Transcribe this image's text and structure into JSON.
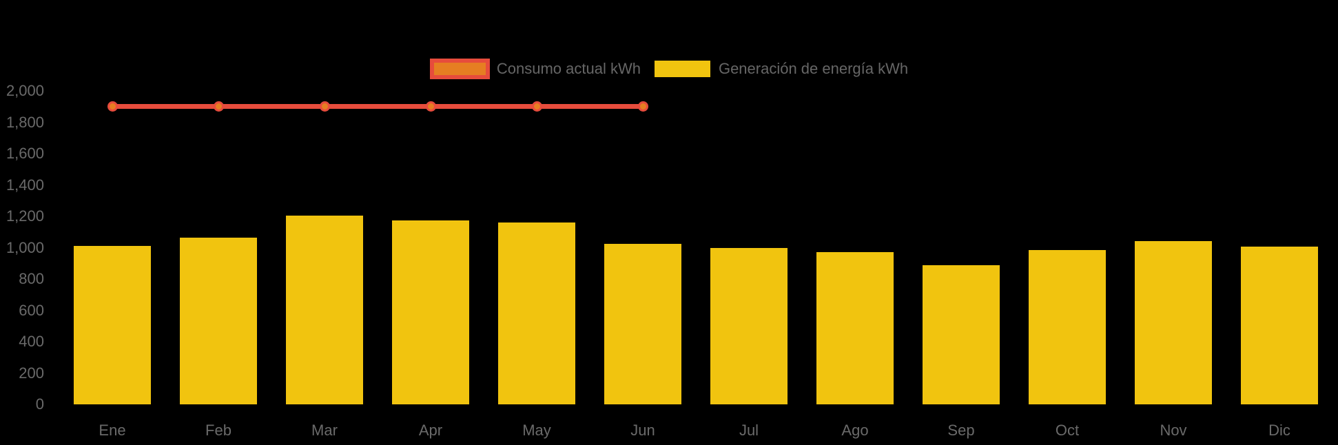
{
  "legend": {
    "items": [
      {
        "id": "consumo",
        "label": "Consumo actual kWh",
        "swatch_fill": "#e67e22",
        "swatch_border": "#e74c3c"
      },
      {
        "id": "generacion",
        "label": "Generación de energía kWh",
        "swatch_fill": "#f1c40f",
        "swatch_border": null
      }
    ]
  },
  "chart_data": {
    "type": "bar",
    "title": "",
    "categories": [
      "Ene",
      "Feb",
      "Mar",
      "Apr",
      "May",
      "Jun",
      "Jul",
      "Ago",
      "Sep",
      "Oct",
      "Nov",
      "Dic"
    ],
    "series": [
      {
        "name": "Consumo actual kWh",
        "kind": "line",
        "line_color": "#e74c3c",
        "point_fill": "#e67e22",
        "point_border": "#e74c3c",
        "values": [
          1900,
          1900,
          1900,
          1900,
          1900,
          1900,
          null,
          null,
          null,
          null,
          null,
          null
        ]
      },
      {
        "name": "Generación de energía kWh",
        "kind": "bar",
        "color": "#f1c40f",
        "values": [
          1010,
          1065,
          1205,
          1175,
          1160,
          1025,
          1000,
          970,
          890,
          985,
          1040,
          1005
        ]
      }
    ],
    "xlabel": "",
    "ylabel": "",
    "ylim": [
      0,
      2000
    ],
    "ytick_step": 200,
    "ytick_labels": [
      "0",
      "200",
      "400",
      "600",
      "800",
      "1,000",
      "1,200",
      "1,400",
      "1,600",
      "1,800",
      "2,000"
    ],
    "grid": false,
    "legend_position": "top-center",
    "background_color": "#000000",
    "axis_text_color": "#6a6a6a",
    "legend_text_color": "#666666"
  }
}
